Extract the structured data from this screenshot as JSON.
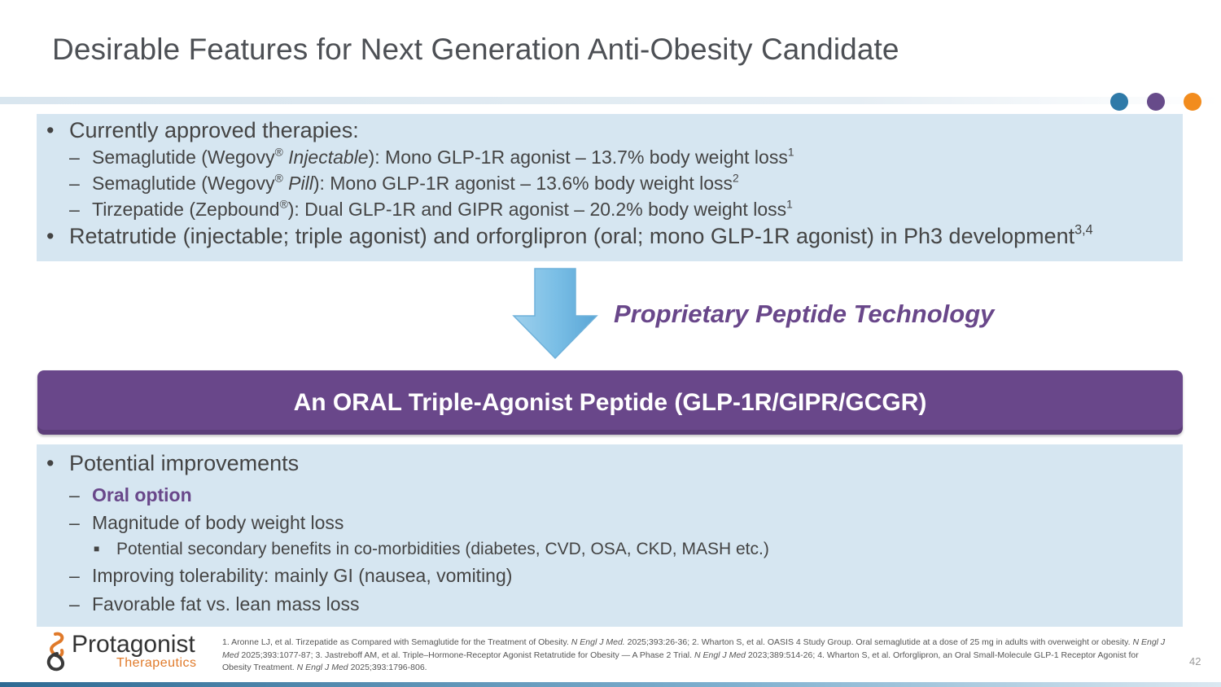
{
  "slide": {
    "title": "Desirable Features for Next Generation Anti-Obesity Candidate",
    "page_number": "42",
    "accent_dots": [
      "#2f7aa8",
      "#674b8a",
      "#f28c1e"
    ]
  },
  "current": {
    "heading": "Currently approved therapies:",
    "items": [
      {
        "pre": "Semaglutide (Wegovy",
        "reg": "®",
        "italic": " Injectable",
        "post": "): Mono GLP-1R agonist – 13.7% body weight loss",
        "sup": "1"
      },
      {
        "pre": "Semaglutide (Wegovy",
        "reg": "®",
        "italic": " Pill",
        "post": "): Mono GLP-1R agonist – 13.6% body weight loss",
        "sup": "2"
      },
      {
        "pre": "Tirzepatide (Zepbound",
        "reg": "®",
        "post": "): Dual GLP-1R and GIPR agonist – 20.2% body weight loss",
        "sup": "1"
      }
    ],
    "pipeline": "Retatrutide (injectable; triple agonist) and orforglipron (oral; mono GLP-1R agonist) in Ph3 development",
    "pipeline_sup": "3,4"
  },
  "transition": {
    "label": "Proprietary Peptide Technology"
  },
  "candidate": {
    "label": "An ORAL Triple-Agonist Peptide (GLP-1R/GIPR/GCGR)"
  },
  "improvements": {
    "heading": "Potential improvements",
    "oral_option": "Oral option",
    "magnitude": "Magnitude of body weight loss",
    "secondary": "Potential secondary benefits in co-morbidities (diabetes, CVD, OSA, CKD, MASH etc.)",
    "tolerability": "Improving tolerability: mainly GI (nausea, vomiting)",
    "fat_lean": "Favorable fat vs. lean mass loss"
  },
  "logo": {
    "name": "Protagonist",
    "sub": "Therapeutics"
  },
  "references": [
    {
      "text": "1. Aronne LJ, et al. Tirzepatide as Compared with Semaglutide for the Treatment of Obesity. ",
      "journal": "N Engl J Med.",
      "tail": " 2025;393:26-36; "
    },
    {
      "text": "2. Wharton S, et al. OASIS 4 Study Group. Oral semaglutide at a dose of 25 mg in adults with overweight or obesity. ",
      "journal": "N Engl J Med",
      "tail": " 2025;393:1077-87; "
    },
    {
      "text": "3. Jastreboff AM, et al. Triple–Hormone-Receptor Agonist Retatrutide for Obesity — A Phase 2 Trial. ",
      "journal": "N Engl J Med",
      "tail": " 2023;389:514-26; "
    },
    {
      "text": "4. Wharton S, et al. Orforglipron, an Oral Small-Molecule GLP-1 Receptor Agonist for Obesity Treatment. ",
      "journal": "N Engl J Med",
      "tail": " 2025;393:1796-806."
    }
  ]
}
